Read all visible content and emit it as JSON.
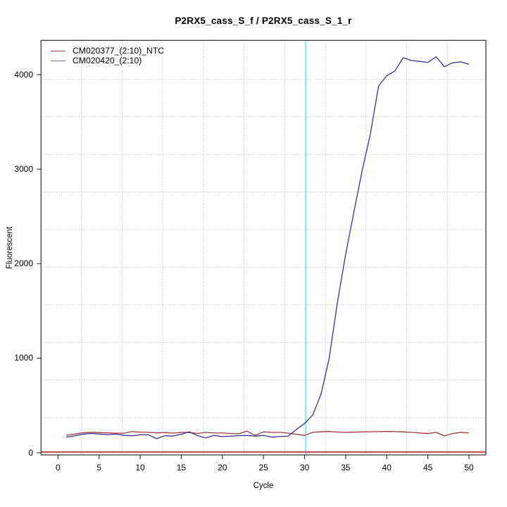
{
  "title": "P2RX5_cass_S_f / P2RX5_cass_S_1_r",
  "legend": {
    "items": [
      {
        "label": "CM020377_(2:10)_NTC",
        "swatch_color": "#a14040"
      },
      {
        "label": "CM020420_(2:10)",
        "swatch_color": "#6b6bc4"
      }
    ]
  },
  "chart_data": {
    "type": "line",
    "title": "P2RX5_cass_S_f / P2RX5_cass_S_1_r",
    "xlabel": "Cycle",
    "ylabel": "Fluorescent",
    "xlim": [
      -2.1,
      52.1
    ],
    "ylim": [
      -170,
      4350
    ],
    "xticks": [
      0,
      5,
      10,
      15,
      20,
      25,
      30,
      35,
      40,
      45,
      50
    ],
    "yticks": [
      0,
      1000,
      2000,
      3000,
      4000
    ],
    "grid": "dotted",
    "legend_position": "top-left",
    "cycles": [
      1,
      2,
      3,
      4,
      5,
      6,
      7,
      8,
      9,
      10,
      11,
      12,
      13,
      14,
      15,
      16,
      17,
      18,
      19,
      20,
      21,
      22,
      23,
      24,
      25,
      26,
      27,
      28,
      29,
      30,
      31,
      32,
      33,
      34,
      35,
      36,
      37,
      38,
      39,
      40,
      41,
      42,
      43,
      44,
      45,
      46,
      47,
      48,
      49,
      50
    ],
    "series": [
      {
        "name": "CM020377_(2:10)_NTC",
        "color": "#9d3939",
        "values": [
          186,
          196,
          211,
          216,
          214,
          211,
          208,
          206,
          224,
          219,
          216,
          211,
          214,
          208,
          216,
          214,
          205,
          216,
          209,
          209,
          204,
          201,
          229,
          184,
          221,
          216,
          216,
          208,
          196,
          184,
          216,
          222,
          226,
          219,
          216,
          218,
          221,
          223,
          224,
          226,
          224,
          221,
          216,
          209,
          203,
          216,
          179,
          203,
          216,
          209
        ]
      },
      {
        "name": "CM020420_(2:10)",
        "color": "#32329b",
        "values": [
          166,
          178,
          196,
          205,
          199,
          191,
          199,
          185,
          180,
          190,
          191,
          149,
          180,
          177,
          196,
          221,
          181,
          157,
          184,
          171,
          176,
          182,
          184,
          176,
          184,
          165,
          172,
          176,
          246,
          310,
          400,
          620,
          1000,
          1590,
          2100,
          2550,
          2980,
          3370,
          3880,
          3990,
          4040,
          4180,
          4150,
          4140,
          4130,
          4190,
          4085,
          4125,
          4135,
          4110
        ]
      }
    ],
    "threshold_line": {
      "y": 8,
      "color": "#c25b5b"
    },
    "vertical_marker": {
      "x": 30.15,
      "color": "#6ff0f0"
    }
  }
}
